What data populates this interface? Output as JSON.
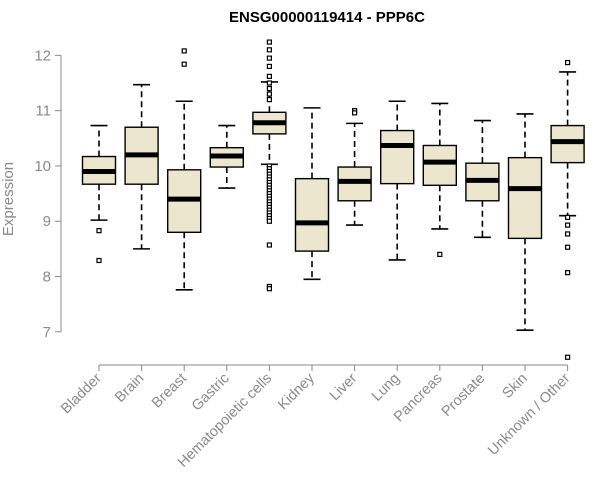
{
  "chart_data": {
    "type": "boxplot",
    "title": "ENSG00000119414 - PPP6C",
    "xlabel": "",
    "ylabel": "Expression",
    "ylim": [
      6.4,
      12.35
    ],
    "yticks": [
      7,
      8,
      9,
      10,
      11,
      12
    ],
    "grid": false,
    "box_color": "#ede6cf",
    "categories": [
      "Bladder",
      "Brain",
      "Breast",
      "Gastric",
      "Hematopoietic cells",
      "Kidney",
      "Liver",
      "Lung",
      "Pancreas",
      "Prostate",
      "Skin",
      "Unknown / Other"
    ],
    "boxes": [
      {
        "min": 9.02,
        "q1": 9.67,
        "median": 9.9,
        "q3": 10.17,
        "max": 10.73,
        "outliers": [
          8.83,
          8.29
        ]
      },
      {
        "min": 8.5,
        "q1": 9.67,
        "median": 10.2,
        "q3": 10.7,
        "max": 11.47,
        "outliers": []
      },
      {
        "min": 7.76,
        "q1": 8.8,
        "median": 9.4,
        "q3": 9.93,
        "max": 11.17,
        "outliers": [
          12.08,
          11.84
        ]
      },
      {
        "min": 9.6,
        "q1": 9.98,
        "median": 10.18,
        "q3": 10.33,
        "max": 10.73,
        "outliers": []
      },
      {
        "min": 10.03,
        "q1": 10.58,
        "median": 10.78,
        "q3": 10.97,
        "max": 11.52,
        "outliers": [
          12.24,
          12.1,
          11.95,
          11.8,
          11.62,
          11.5,
          11.4,
          11.3,
          11.2,
          10.0,
          9.95,
          9.9,
          9.85,
          9.8,
          9.75,
          9.7,
          9.65,
          9.6,
          9.55,
          9.5,
          9.45,
          9.4,
          9.35,
          9.3,
          9.25,
          9.2,
          9.15,
          9.1,
          9.05,
          9.0,
          8.57,
          7.82,
          7.78
        ]
      },
      {
        "min": 7.95,
        "q1": 8.46,
        "median": 8.97,
        "q3": 9.77,
        "max": 11.05,
        "outliers": []
      },
      {
        "min": 8.93,
        "q1": 9.37,
        "median": 9.72,
        "q3": 9.98,
        "max": 10.77,
        "outliers": [
          11.0,
          10.96
        ]
      },
      {
        "min": 8.3,
        "q1": 9.68,
        "median": 10.37,
        "q3": 10.64,
        "max": 11.17,
        "outliers": []
      },
      {
        "min": 8.86,
        "q1": 9.65,
        "median": 10.07,
        "q3": 10.37,
        "max": 11.13,
        "outliers": [
          8.4
        ]
      },
      {
        "min": 8.71,
        "q1": 9.37,
        "median": 9.74,
        "q3": 10.05,
        "max": 10.82,
        "outliers": []
      },
      {
        "min": 7.03,
        "q1": 8.69,
        "median": 9.59,
        "q3": 10.15,
        "max": 10.94,
        "outliers": []
      },
      {
        "min": 9.1,
        "q1": 10.06,
        "median": 10.44,
        "q3": 10.73,
        "max": 11.7,
        "outliers": [
          11.87,
          9.07,
          8.93,
          8.77,
          8.53,
          8.07,
          6.54
        ]
      }
    ]
  }
}
